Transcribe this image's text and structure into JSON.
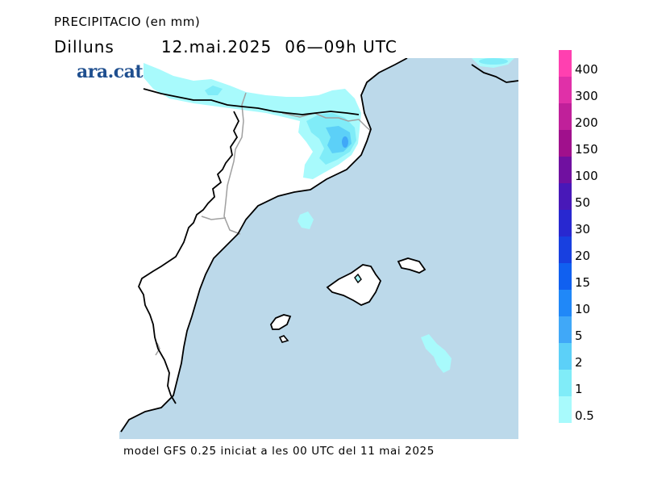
{
  "header": {
    "title": "PRECIPITACIO (en mm)",
    "day": "Dilluns",
    "date": "12.mai.2025",
    "hours": "06—09h UTC"
  },
  "logo": {
    "text": "ara.cat",
    "color": "#1f4f8f"
  },
  "legend": {
    "labels": [
      "400",
      "300",
      "200",
      "150",
      "100",
      "50",
      "30",
      "20",
      "15",
      "10",
      "5",
      "2",
      "1",
      "0.5"
    ],
    "colors": [
      "#ff40b0",
      "#e030a8",
      "#c0209a",
      "#a0108c",
      "#7010a0",
      "#4818b8",
      "#2828d0",
      "#1840e0",
      "#1060f0",
      "#2088f8",
      "#40a8f8",
      "#5cd0f8",
      "#80ecf8",
      "#a8fafc"
    ]
  },
  "map": {
    "sea_color": "#bcd9ea",
    "land_color": "#ffffff",
    "precip_colors": [
      "#a8fafc",
      "#80ecf8",
      "#5cd0f8",
      "#40a8f8"
    ]
  },
  "footer": {
    "text": "model GFS 0.25 iniciat a les 00 UTC del 11 mai 2025"
  }
}
